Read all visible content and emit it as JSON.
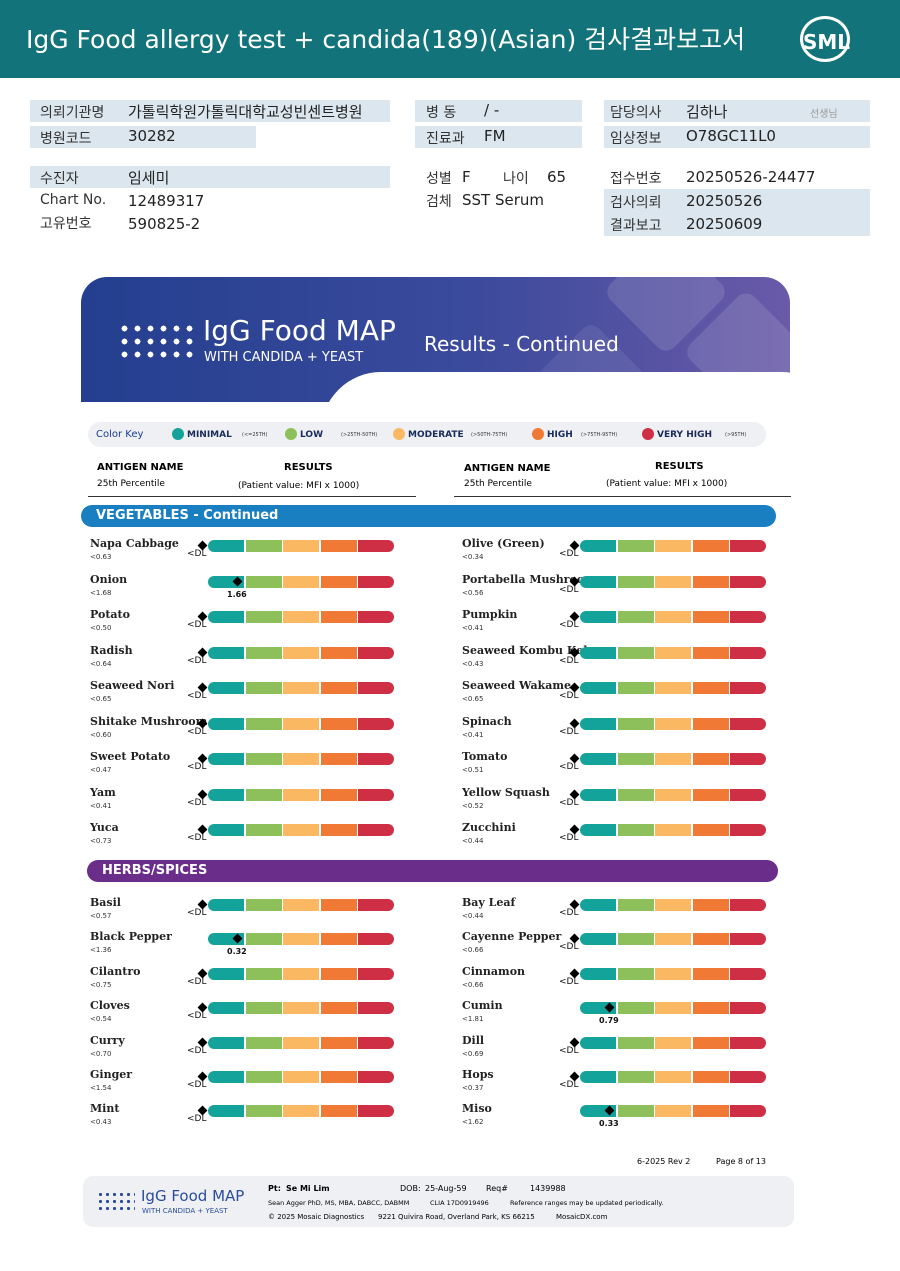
{
  "header": {
    "title": "IgG Food allergy test + candida(189)(Asian) 검사결과보고서",
    "logo": "SML"
  },
  "info": {
    "institution": {
      "label": "의뢰기관명",
      "value": "가톨릭학원가톨릭대학교성빈센트병원"
    },
    "hospital_code": {
      "label": "병원코드",
      "value": "30282"
    },
    "patient": {
      "label": "수진자",
      "value": "임세미"
    },
    "chart_no": {
      "label": "Chart No.",
      "value": "12489317"
    },
    "unique_no": {
      "label": "고유번호",
      "value": "590825-2"
    },
    "ward": {
      "label": "병 동",
      "value": "/ -"
    },
    "department": {
      "label": "진료과",
      "value": "FM"
    },
    "sex": {
      "label": "성별",
      "value": "F"
    },
    "age": {
      "label": "나이",
      "value": "65"
    },
    "specimen": {
      "label": "검체",
      "value": "SST Serum"
    },
    "doctor": {
      "label": "담당의사",
      "value": "김하나",
      "suffix": "선생님"
    },
    "clinical": {
      "label": "임상정보",
      "value": "O78GC11L0"
    },
    "receipt_no": {
      "label": "접수번호",
      "value": "20250526-24477"
    },
    "request_date": {
      "label": "검사의뢰",
      "value": "20250526"
    },
    "report_date": {
      "label": "결과보고",
      "value": "20250609"
    }
  },
  "banner": {
    "brand": "IgG Food MAP",
    "subbrand": "WITH CANDIDA + YEAST",
    "subtitle": "Results - Continued"
  },
  "color_key": {
    "title": "Color Key",
    "levels": [
      {
        "name": "MINIMAL",
        "range": "(<=25TH)",
        "color": "#13a39a"
      },
      {
        "name": "LOW",
        "range": "(>25TH-50TH)",
        "color": "#8dbf5a"
      },
      {
        "name": "MODERATE",
        "range": "(>50TH-75TH)",
        "color": "#fbb862"
      },
      {
        "name": "HIGH",
        "range": "(>75TH-95TH)",
        "color": "#f07a35"
      },
      {
        "name": "VERY HIGH",
        "range": "(>95TH)",
        "color": "#cf2f45"
      }
    ]
  },
  "columns": {
    "antigen": "ANTIGEN NAME",
    "percentile": "25th Percentile",
    "results": "RESULTS",
    "results_note": "(Patient value: MFI x 1000)"
  },
  "sections": [
    {
      "title": "VEGETABLES - Continued",
      "color": "#1a7fc0",
      "left": [
        {
          "name": "Napa Cabbage",
          "percentile": "<0.63",
          "result": "<DL"
        },
        {
          "name": "Onion",
          "percentile": "<1.68",
          "result": "1.66"
        },
        {
          "name": "Potato",
          "percentile": "<0.50",
          "result": "<DL"
        },
        {
          "name": "Radish",
          "percentile": "<0.64",
          "result": "<DL"
        },
        {
          "name": "Seaweed Nori",
          "percentile": "<0.65",
          "result": "<DL"
        },
        {
          "name": "Shitake Mushroom",
          "percentile": "<0.60",
          "result": "<DL"
        },
        {
          "name": "Sweet Potato",
          "percentile": "<0.47",
          "result": "<DL"
        },
        {
          "name": "Yam",
          "percentile": "<0.41",
          "result": "<DL"
        },
        {
          "name": "Yuca",
          "percentile": "<0.73",
          "result": "<DL"
        }
      ],
      "right": [
        {
          "name": "Olive (Green)",
          "percentile": "<0.34",
          "result": "<DL"
        },
        {
          "name": "Portabella Mushroom",
          "percentile": "<0.56",
          "result": "<DL"
        },
        {
          "name": "Pumpkin",
          "percentile": "<0.41",
          "result": "<DL"
        },
        {
          "name": "Seaweed Kombu Kelp",
          "percentile": "<0.43",
          "result": "<DL"
        },
        {
          "name": "Seaweed Wakame",
          "percentile": "<0.65",
          "result": "<DL"
        },
        {
          "name": "Spinach",
          "percentile": "<0.41",
          "result": "<DL"
        },
        {
          "name": "Tomato",
          "percentile": "<0.51",
          "result": "<DL"
        },
        {
          "name": "Yellow Squash",
          "percentile": "<0.52",
          "result": "<DL"
        },
        {
          "name": "Zucchini",
          "percentile": "<0.44",
          "result": "<DL"
        }
      ]
    },
    {
      "title": "HERBS/SPICES",
      "color": "#6a2d8a",
      "left": [
        {
          "name": "Basil",
          "percentile": "<0.57",
          "result": "<DL"
        },
        {
          "name": "Black Pepper",
          "percentile": "<1.36",
          "result": "0.32"
        },
        {
          "name": "Cilantro",
          "percentile": "<0.75",
          "result": "<DL"
        },
        {
          "name": "Cloves",
          "percentile": "<0.54",
          "result": "<DL"
        },
        {
          "name": "Curry",
          "percentile": "<0.70",
          "result": "<DL"
        },
        {
          "name": "Ginger",
          "percentile": "<1.54",
          "result": "<DL"
        },
        {
          "name": "Mint",
          "percentile": "<0.43",
          "result": "<DL"
        }
      ],
      "right": [
        {
          "name": "Bay Leaf",
          "percentile": "<0.44",
          "result": "<DL"
        },
        {
          "name": "Cayenne Pepper",
          "percentile": "<0.66",
          "result": "<DL"
        },
        {
          "name": "Cinnamon",
          "percentile": "<0.66",
          "result": "<DL"
        },
        {
          "name": "Cumin",
          "percentile": "<1.81",
          "result": "0.79"
        },
        {
          "name": "Dill",
          "percentile": "<0.69",
          "result": "<DL"
        },
        {
          "name": "Hops",
          "percentile": "<0.37",
          "result": "<DL"
        },
        {
          "name": "Miso",
          "percentile": "<1.62",
          "result": "0.33"
        }
      ]
    }
  ],
  "footer": {
    "revision": "6-2025 Rev 2",
    "page": "Page 8 of 13",
    "brand": "IgG Food MAP",
    "subbrand": "WITH CANDIDA + YEAST",
    "pt_label": "Pt:",
    "pt_name": "Se Mi Lim",
    "dob_label": "DOB:",
    "dob": "25-Aug-59",
    "req_label": "Req#",
    "req": "1439988",
    "director": "Sean Agger PhD, MS, MBA, DABCC, DABMM",
    "clia": "CLIA 17D0919496",
    "note": "Reference ranges may be updated periodically.",
    "copyright": "© 2025 Mosaic Diagnostics",
    "address": "9221 Quivira Road, Overland Park, KS 66215",
    "website": "MosaicDX.com"
  }
}
